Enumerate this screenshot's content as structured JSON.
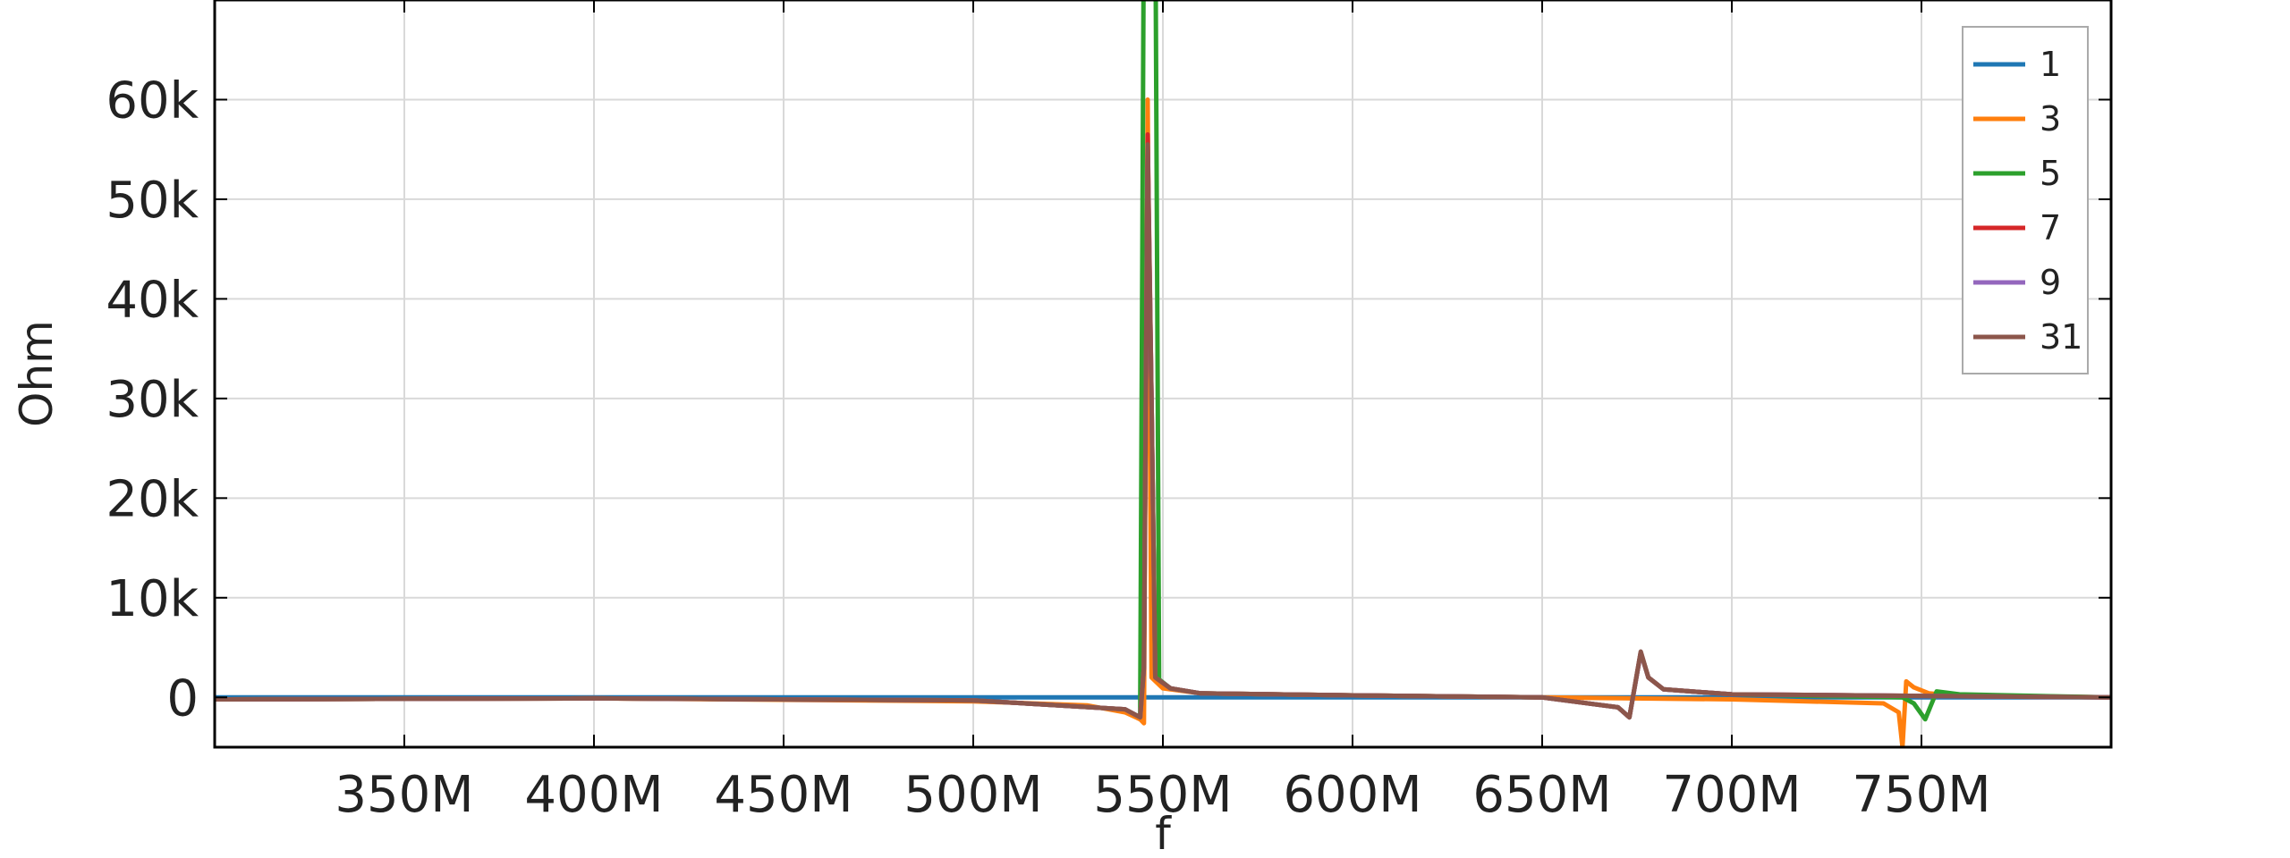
{
  "chart_data": {
    "type": "line",
    "xlabel": "f",
    "ylabel": "Ohm",
    "xlim": [
      300000000,
      800000000
    ],
    "ylim": [
      -5000,
      70000
    ],
    "x_ticks": [
      350000000,
      400000000,
      450000000,
      500000000,
      550000000,
      600000000,
      650000000,
      700000000,
      750000000
    ],
    "x_tick_labels": [
      "350M",
      "400M",
      "450M",
      "500M",
      "550M",
      "600M",
      "650M",
      "700M",
      "750M"
    ],
    "y_ticks": [
      0,
      10000,
      20000,
      30000,
      40000,
      50000,
      60000
    ],
    "y_tick_labels": [
      "0",
      "10k",
      "20k",
      "30k",
      "40k",
      "50k",
      "60k"
    ],
    "grid": true,
    "legend_position": "top-right",
    "series": [
      {
        "name": "1",
        "color": "#1f77b4",
        "points": [
          [
            300000000,
            0
          ],
          [
            545000000,
            0
          ],
          [
            546000000,
            0
          ],
          [
            547000000,
            0
          ],
          [
            800000000,
            0
          ]
        ]
      },
      {
        "name": "3",
        "color": "#ff7f0e",
        "points": [
          [
            300000000,
            -200
          ],
          [
            400000000,
            -100
          ],
          [
            500000000,
            -400
          ],
          [
            530000000,
            -800
          ],
          [
            540000000,
            -1500
          ],
          [
            544000000,
            -2200
          ],
          [
            545000000,
            -2600
          ],
          [
            546000000,
            60000
          ],
          [
            547000000,
            2000
          ],
          [
            550000000,
            900
          ],
          [
            560000000,
            400
          ],
          [
            600000000,
            200
          ],
          [
            650000000,
            0
          ],
          [
            700000000,
            -200
          ],
          [
            740000000,
            -600
          ],
          [
            744000000,
            -1500
          ],
          [
            745000000,
            -5000
          ],
          [
            746000000,
            1600
          ],
          [
            748000000,
            1000
          ],
          [
            752000000,
            400
          ],
          [
            760000000,
            200
          ],
          [
            800000000,
            0
          ]
        ]
      },
      {
        "name": "5",
        "color": "#2ca02c",
        "points": [
          [
            300000000,
            -200
          ],
          [
            400000000,
            -100
          ],
          [
            500000000,
            -300
          ],
          [
            540000000,
            -1200
          ],
          [
            544000000,
            -2000
          ],
          [
            545000000,
            80000
          ],
          [
            547000000,
            75000
          ],
          [
            548000000,
            80000
          ],
          [
            549000000,
            1800
          ],
          [
            552000000,
            900
          ],
          [
            560000000,
            400
          ],
          [
            600000000,
            200
          ],
          [
            650000000,
            0
          ],
          [
            670000000,
            -1000
          ],
          [
            673000000,
            -2000
          ],
          [
            676000000,
            4500
          ],
          [
            678000000,
            2000
          ],
          [
            682000000,
            800
          ],
          [
            700000000,
            300
          ],
          [
            745000000,
            0
          ],
          [
            748000000,
            -600
          ],
          [
            751000000,
            -2200
          ],
          [
            754000000,
            600
          ],
          [
            760000000,
            300
          ],
          [
            800000000,
            0
          ]
        ]
      },
      {
        "name": "7",
        "color": "#d62728",
        "points": [
          [
            300000000,
            -200
          ],
          [
            400000000,
            -100
          ],
          [
            500000000,
            -300
          ],
          [
            540000000,
            -1200
          ],
          [
            544000000,
            -2000
          ],
          [
            545000000,
            3000
          ],
          [
            546000000,
            56500
          ],
          [
            547000000,
            30000
          ],
          [
            548000000,
            2000
          ],
          [
            552000000,
            900
          ],
          [
            560000000,
            400
          ],
          [
            600000000,
            200
          ],
          [
            650000000,
            0
          ],
          [
            670000000,
            -1000
          ],
          [
            673000000,
            -2000
          ],
          [
            676000000,
            4500
          ],
          [
            678000000,
            2000
          ],
          [
            682000000,
            800
          ],
          [
            700000000,
            300
          ],
          [
            800000000,
            0
          ]
        ]
      },
      {
        "name": "9",
        "color": "#9467bd",
        "points": [
          [
            300000000,
            -200
          ],
          [
            400000000,
            -100
          ],
          [
            500000000,
            -300
          ],
          [
            540000000,
            -1200
          ],
          [
            544000000,
            -2000
          ],
          [
            545000000,
            3000
          ],
          [
            546000000,
            55000
          ],
          [
            547000000,
            30000
          ],
          [
            548000000,
            2000
          ],
          [
            552000000,
            900
          ],
          [
            560000000,
            400
          ],
          [
            600000000,
            200
          ],
          [
            650000000,
            0
          ],
          [
            670000000,
            -1000
          ],
          [
            673000000,
            -2000
          ],
          [
            676000000,
            4500
          ],
          [
            678000000,
            2000
          ],
          [
            682000000,
            800
          ],
          [
            700000000,
            300
          ],
          [
            800000000,
            0
          ]
        ]
      },
      {
        "name": "31",
        "color": "#8c564b",
        "points": [
          [
            300000000,
            -200
          ],
          [
            400000000,
            -100
          ],
          [
            500000000,
            -300
          ],
          [
            540000000,
            -1200
          ],
          [
            544000000,
            -2000
          ],
          [
            545000000,
            3000
          ],
          [
            546000000,
            55500
          ],
          [
            547000000,
            30000
          ],
          [
            548000000,
            2000
          ],
          [
            552000000,
            900
          ],
          [
            560000000,
            400
          ],
          [
            600000000,
            200
          ],
          [
            650000000,
            0
          ],
          [
            670000000,
            -1000
          ],
          [
            673000000,
            -2000
          ],
          [
            676000000,
            4600
          ],
          [
            678000000,
            2000
          ],
          [
            682000000,
            800
          ],
          [
            700000000,
            300
          ],
          [
            800000000,
            0
          ]
        ]
      }
    ]
  }
}
